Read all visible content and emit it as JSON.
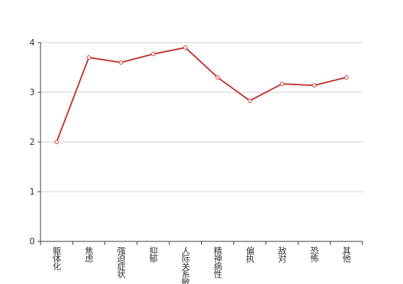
{
  "chart_data": {
    "type": "line",
    "categories": [
      "躯体化",
      "焦虑",
      "强迫症状",
      "抑郁",
      "人际关系敏感",
      "精神病性",
      "偏执",
      "敌对",
      "恐怖",
      "其他"
    ],
    "values": [
      2.0,
      3.7,
      3.6,
      3.77,
      3.9,
      3.3,
      2.83,
      3.17,
      3.14,
      3.3
    ],
    "color": "#c23531",
    "ylim": [
      0,
      4
    ],
    "yticks": [
      0,
      1,
      2,
      3,
      4
    ],
    "grid": true
  }
}
